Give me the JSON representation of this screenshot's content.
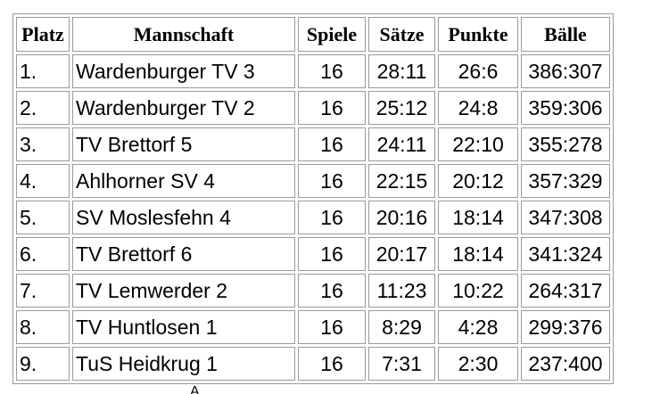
{
  "table": {
    "headers": [
      "Platz",
      "Mannschaft",
      "Spiele",
      "Sätze",
      "Punkte",
      "Bälle"
    ],
    "rows": [
      [
        "1.",
        "Wardenburger TV 3",
        "16",
        "28:11",
        "26:6",
        "386:307"
      ],
      [
        "2.",
        "Wardenburger TV 2",
        "16",
        "25:12",
        "24:8",
        "359:306"
      ],
      [
        "3.",
        "TV Brettorf 5",
        "16",
        "24:11",
        "22:10",
        "355:278"
      ],
      [
        "4.",
        "Ahlhorner SV 4",
        "16",
        "22:15",
        "20:12",
        "357:329"
      ],
      [
        "5.",
        "SV Moslesfehn 4",
        "16",
        "20:16",
        "18:14",
        "347:308"
      ],
      [
        "6.",
        "TV Brettorf 6",
        "16",
        "20:17",
        "18:14",
        "341:324"
      ],
      [
        "7.",
        "TV Lemwerder 2",
        "16",
        "11:23",
        "10:22",
        "264:317"
      ],
      [
        "8.",
        "TV Huntlosen 1",
        "16",
        "8:29",
        "4:28",
        "299:376"
      ],
      [
        "9.",
        "TuS Heidkrug 1",
        "16",
        "7:31",
        "2:30",
        "237:400"
      ]
    ]
  },
  "footer": {
    "cut_text": "Ä"
  }
}
